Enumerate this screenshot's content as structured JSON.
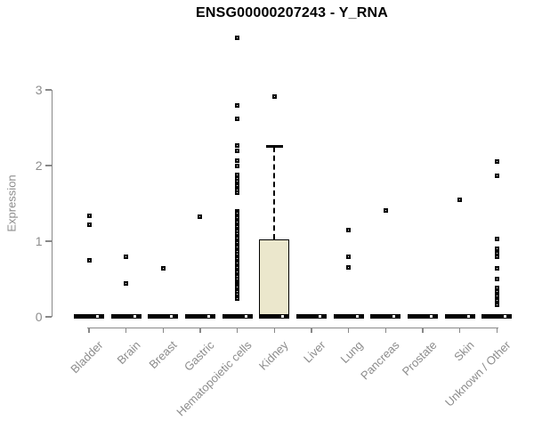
{
  "colors": {
    "box_fill": "#ebe7cc",
    "box_border": "#000000",
    "median": "#000000",
    "outlier": "#000000",
    "axis": "#888888",
    "axis_label": "#8c8c8c",
    "title": "#000000",
    "background": "#ffffff"
  },
  "chart_data": {
    "type": "boxplot",
    "title": "ENSG00000207243 - Y_RNA",
    "xlabel": "",
    "ylabel": "Expression",
    "yticks": [
      0,
      1,
      2,
      3
    ],
    "ylim": [
      0,
      3.8
    ],
    "grid": false,
    "legend": "none",
    "categories": [
      "Bladder",
      "Brain",
      "Breast",
      "Gastric",
      "Hematopoietic cells",
      "Kidney",
      "Liver",
      "Lung",
      "Pancreas",
      "Prostate",
      "Skin",
      "Unknown / Other"
    ],
    "boxes": [
      {
        "category": "Bladder",
        "q1": 0,
        "median": 0,
        "q3": 0,
        "whisker_low": 0,
        "whisker_high": 0,
        "outliers": [
          1.34,
          1.22,
          0.75
        ]
      },
      {
        "category": "Brain",
        "q1": 0,
        "median": 0,
        "q3": 0,
        "whisker_low": 0,
        "whisker_high": 0,
        "outliers": [
          0.8,
          0.44
        ]
      },
      {
        "category": "Breast",
        "q1": 0,
        "median": 0,
        "q3": 0,
        "whisker_low": 0,
        "whisker_high": 0,
        "outliers": [
          0.64
        ]
      },
      {
        "category": "Gastric",
        "q1": 0,
        "median": 0,
        "q3": 0,
        "whisker_low": 0,
        "whisker_high": 0,
        "outliers": [
          1.32
        ]
      },
      {
        "category": "Hematopoietic cells",
        "q1": 0,
        "median": 0,
        "q3": 0,
        "whisker_low": 0,
        "whisker_high": 0,
        "outliers": [
          3.69,
          2.79,
          2.62,
          2.26,
          2.2,
          2.07,
          1.99,
          1.88,
          1.83,
          1.79,
          1.73,
          1.68,
          1.64,
          1.4,
          1.37,
          1.34,
          1.31,
          1.28,
          1.25,
          1.22,
          1.19,
          1.13,
          1.1,
          1.07,
          1.04,
          1.01,
          0.98,
          0.95,
          0.92,
          0.89,
          0.86,
          0.83,
          0.8,
          0.77,
          0.74,
          0.71,
          0.68,
          0.65,
          0.62,
          0.59,
          0.56,
          0.53,
          0.5,
          0.47,
          0.44,
          0.42,
          0.39,
          0.36,
          0.33,
          0.3,
          0.27,
          0.24
        ]
      },
      {
        "category": "Kidney",
        "q1": 0,
        "median": 0,
        "q3": 1.02,
        "whisker_low": 0,
        "whisker_high": 2.25,
        "outliers": [
          2.91
        ]
      },
      {
        "category": "Liver",
        "q1": 0,
        "median": 0,
        "q3": 0,
        "whisker_low": 0,
        "whisker_high": 0,
        "outliers": []
      },
      {
        "category": "Lung",
        "q1": 0,
        "median": 0,
        "q3": 0,
        "whisker_low": 0,
        "whisker_high": 0,
        "outliers": [
          1.15,
          0.79,
          0.65
        ]
      },
      {
        "category": "Pancreas",
        "q1": 0,
        "median": 0,
        "q3": 0,
        "whisker_low": 0,
        "whisker_high": 0,
        "outliers": [
          1.41
        ]
      },
      {
        "category": "Prostate",
        "q1": 0,
        "median": 0,
        "q3": 0,
        "whisker_low": 0,
        "whisker_high": 0,
        "outliers": []
      },
      {
        "category": "Skin",
        "q1": 0,
        "median": 0,
        "q3": 0,
        "whisker_low": 0,
        "whisker_high": 0,
        "outliers": [
          1.55
        ]
      },
      {
        "category": "Unknown / Other",
        "q1": 0,
        "median": 0,
        "q3": 0,
        "whisker_low": 0,
        "whisker_high": 0,
        "outliers": [
          2.05,
          1.87,
          1.03,
          0.9,
          0.84,
          0.79,
          0.64,
          0.5,
          0.38,
          0.33,
          0.28,
          0.22,
          0.16
        ]
      }
    ]
  }
}
